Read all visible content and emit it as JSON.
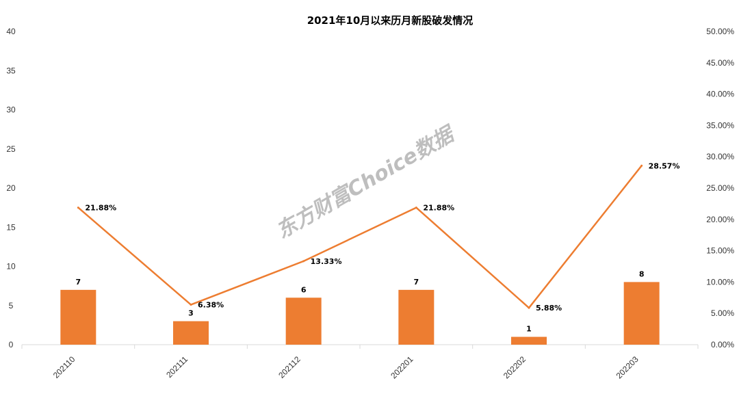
{
  "chart_data": {
    "type": "bar",
    "title": "2021年10月以来历月新股破发情况",
    "watermark": "东方财富Choice数据",
    "categories": [
      "202110",
      "202111",
      "202112",
      "202201",
      "202202",
      "202203"
    ],
    "series": [
      {
        "type": "bar",
        "values": [
          7,
          3,
          6,
          7,
          1,
          8
        ],
        "color": "#ED7D31",
        "axis": "left"
      },
      {
        "type": "line",
        "values": [
          21.88,
          6.38,
          13.33,
          21.88,
          5.88,
          28.57
        ],
        "labels": [
          "21.88%",
          "6.38%",
          "13.33%",
          "21.88%",
          "5.88%",
          "28.57%"
        ],
        "color": "#ED7D31",
        "axis": "right"
      }
    ],
    "y_left": {
      "min": 0,
      "max": 40,
      "ticks": [
        "0",
        "5",
        "10",
        "15",
        "20",
        "25",
        "30",
        "35",
        "40"
      ]
    },
    "y_right": {
      "min": 0,
      "max": 50,
      "ticks": [
        "0.00%",
        "5.00%",
        "10.00%",
        "15.00%",
        "20.00%",
        "25.00%",
        "30.00%",
        "35.00%",
        "40.00%",
        "45.00%",
        "50.00%"
      ]
    },
    "grid": false,
    "legend": "none"
  }
}
